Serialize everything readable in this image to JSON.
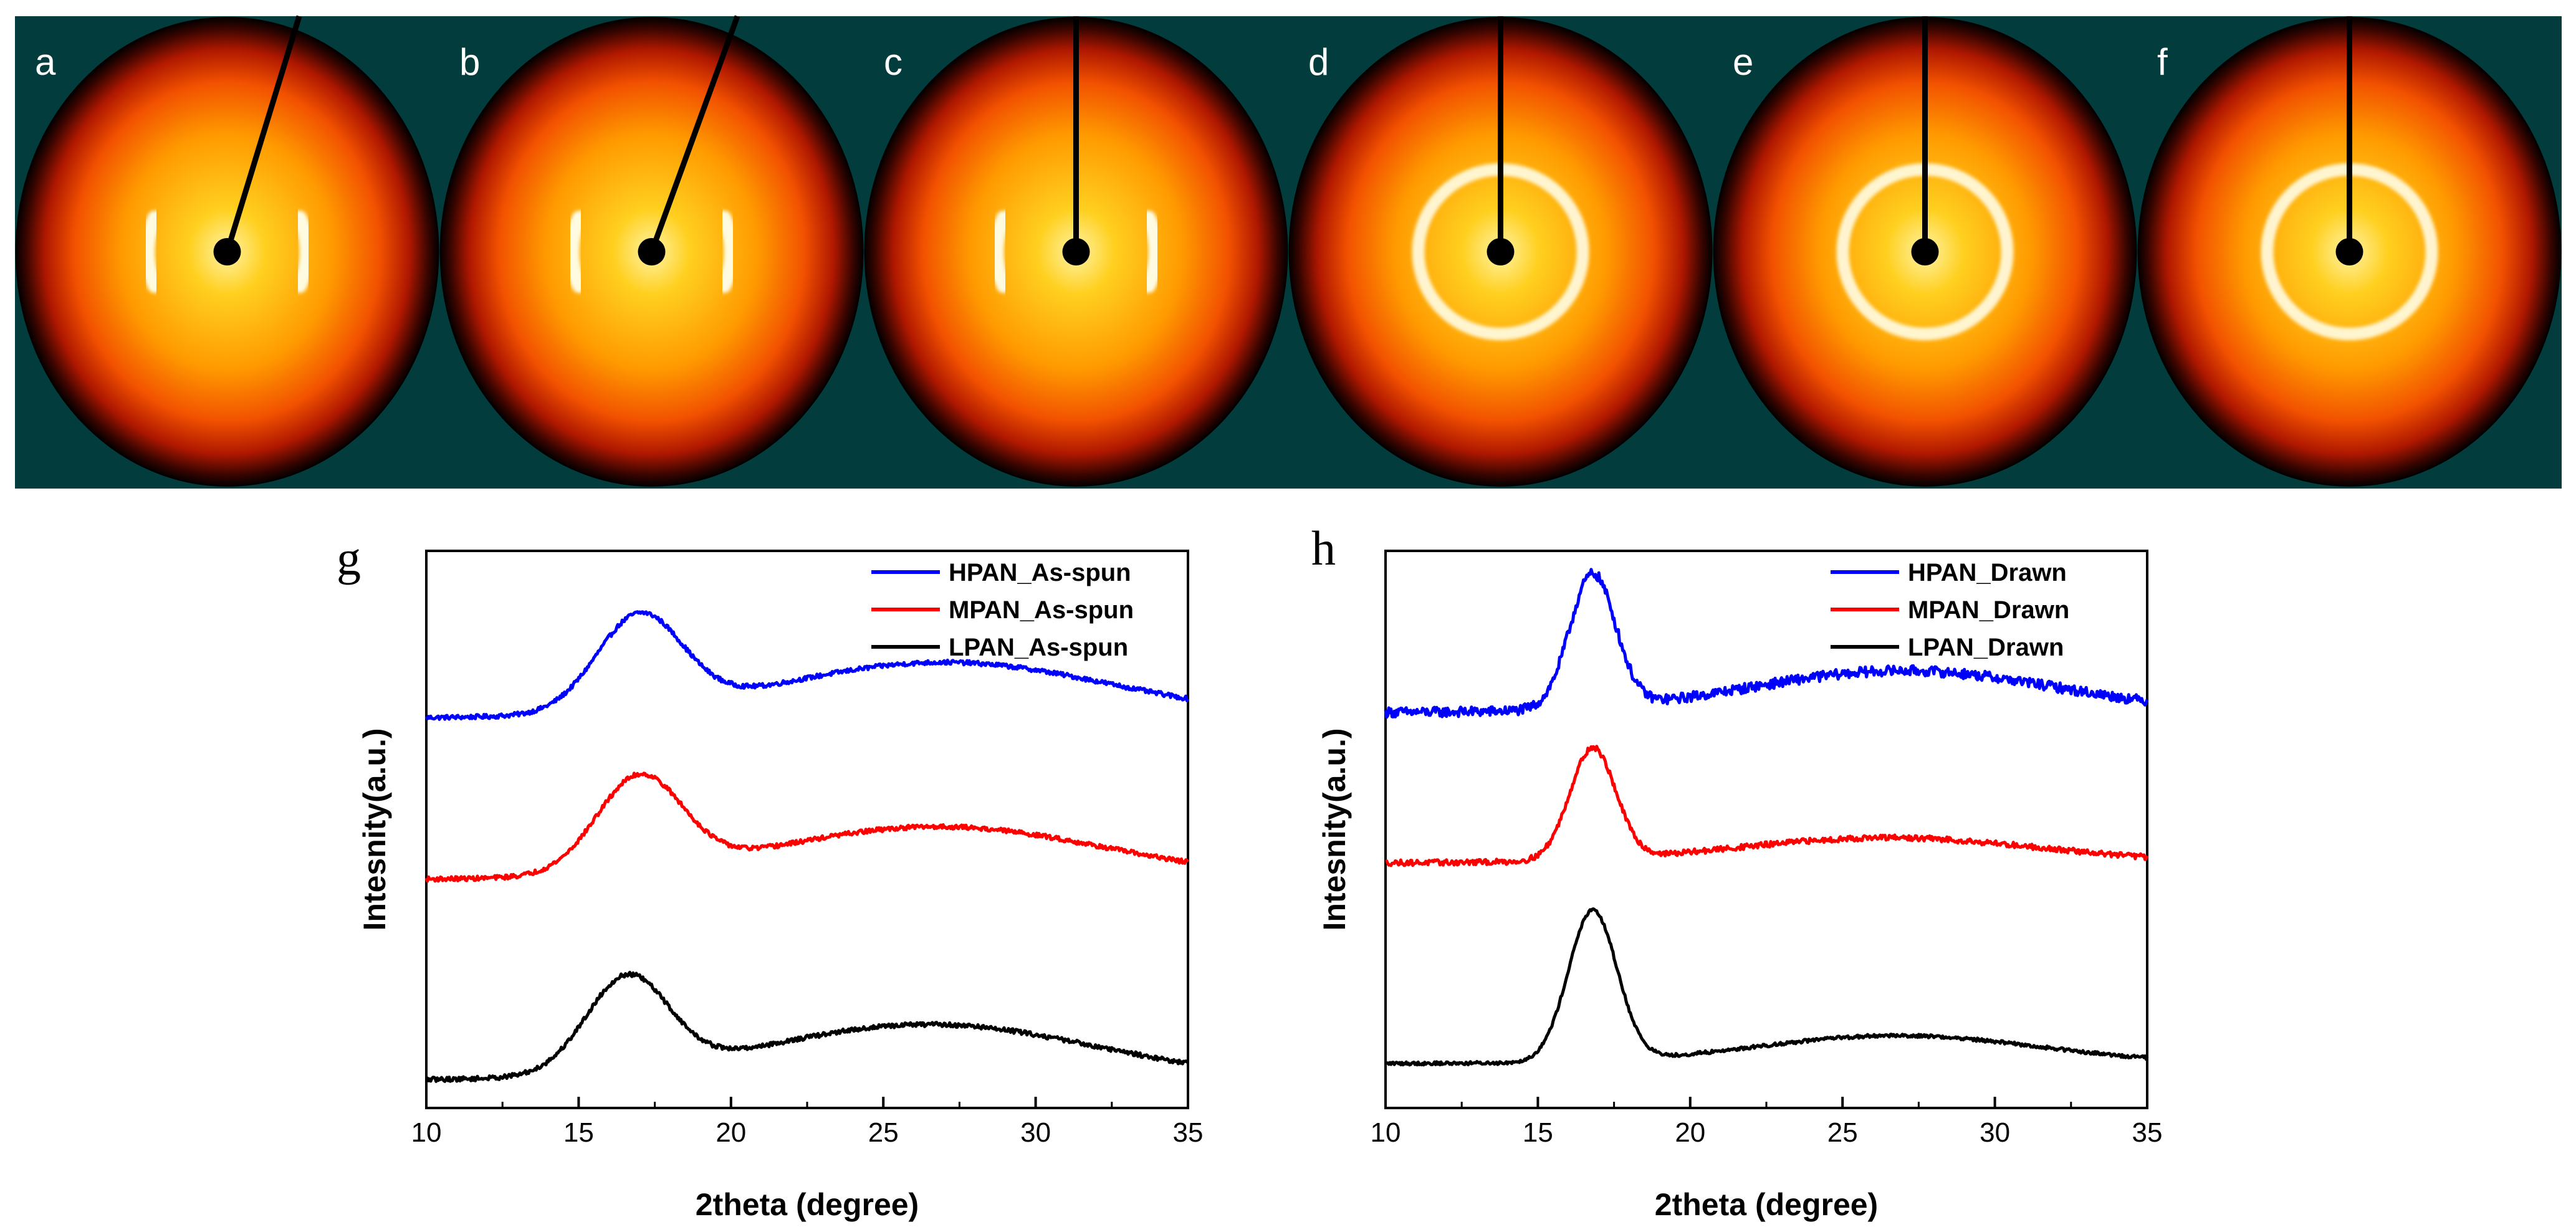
{
  "colors": {
    "pattern_background": "#033c3c",
    "pattern_dark": "#000000",
    "pattern_red": "#e01500",
    "pattern_orange": "#ff7a00",
    "pattern_yellow": "#ffd200",
    "pattern_white": "#fffbe0",
    "series_blue": "#0000ff",
    "series_red": "#ff0000",
    "series_black": "#000000"
  },
  "diffraction_panels": [
    {
      "label": "a",
      "ring": "arcs",
      "stop_angle_deg": 17
    },
    {
      "label": "b",
      "ring": "arcs",
      "stop_angle_deg": 20
    },
    {
      "label": "c",
      "ring": "arcs",
      "stop_angle_deg": 0
    },
    {
      "label": "d",
      "ring": "full",
      "stop_angle_deg": 0
    },
    {
      "label": "e",
      "ring": "full",
      "stop_angle_deg": 0
    },
    {
      "label": "f",
      "ring": "full",
      "stop_angle_deg": 0
    }
  ],
  "chart_data": [
    {
      "panel_label": "g",
      "type": "line",
      "title": "",
      "xlabel": "2theta (degree)",
      "ylabel": "Intesnity(a.u.)",
      "xlim": [
        10,
        35
      ],
      "ylim": [
        0,
        1
      ],
      "xticks": [
        10,
        15,
        20,
        25,
        30,
        35
      ],
      "grid": false,
      "legend_position": "top-right",
      "series": [
        {
          "name": "HPAN_As-spun",
          "color": "#0000ff",
          "baseline": 0.7,
          "peak_x": 17.0,
          "peak_h": 0.17,
          "peak_w": 1.4,
          "broad_x": 27.0,
          "broad_h": 0.1,
          "broad_w": 5.5,
          "slope": 0.0,
          "noise": 0.004
        },
        {
          "name": "MPAN_As-spun",
          "color": "#ff0000",
          "baseline": 0.41,
          "peak_x": 17.0,
          "peak_h": 0.17,
          "peak_w": 1.4,
          "broad_x": 26.8,
          "broad_h": 0.095,
          "broad_w": 5.5,
          "slope": 0.0,
          "noise": 0.004
        },
        {
          "name": "LPAN_As-spun",
          "color": "#000000",
          "baseline": 0.05,
          "peak_x": 16.6,
          "peak_h": 0.17,
          "peak_w": 1.35,
          "broad_x": 26.5,
          "broad_h": 0.1,
          "broad_w": 5.5,
          "slope": 0.0,
          "noise": 0.004
        }
      ]
    },
    {
      "panel_label": "h",
      "type": "line",
      "title": "",
      "xlabel": "2theta (degree)",
      "ylabel": "Intesnity(a.u.)",
      "xlim": [
        10,
        35
      ],
      "ylim": [
        0,
        1
      ],
      "xticks": [
        10,
        15,
        20,
        25,
        30,
        35
      ],
      "grid": false,
      "legend_position": "top-right",
      "series": [
        {
          "name": "HPAN_Drawn",
          "color": "#0000ff",
          "baseline": 0.71,
          "peak_x": 16.8,
          "peak_h": 0.24,
          "peak_w": 0.75,
          "broad_x": 27.0,
          "broad_h": 0.075,
          "broad_w": 5.0,
          "slope": 0.0,
          "noise": 0.009
        },
        {
          "name": "MPAN_Drawn",
          "color": "#ff0000",
          "baseline": 0.44,
          "peak_x": 16.8,
          "peak_h": 0.2,
          "peak_w": 0.75,
          "broad_x": 26.5,
          "broad_h": 0.045,
          "broad_w": 5.0,
          "slope": 0.0,
          "noise": 0.005
        },
        {
          "name": "LPAN_Drawn",
          "color": "#000000",
          "baseline": 0.08,
          "peak_x": 16.8,
          "peak_h": 0.27,
          "peak_w": 0.8,
          "broad_x": 26.8,
          "broad_h": 0.05,
          "broad_w": 4.6,
          "slope": 0.0,
          "noise": 0.003
        }
      ]
    }
  ]
}
